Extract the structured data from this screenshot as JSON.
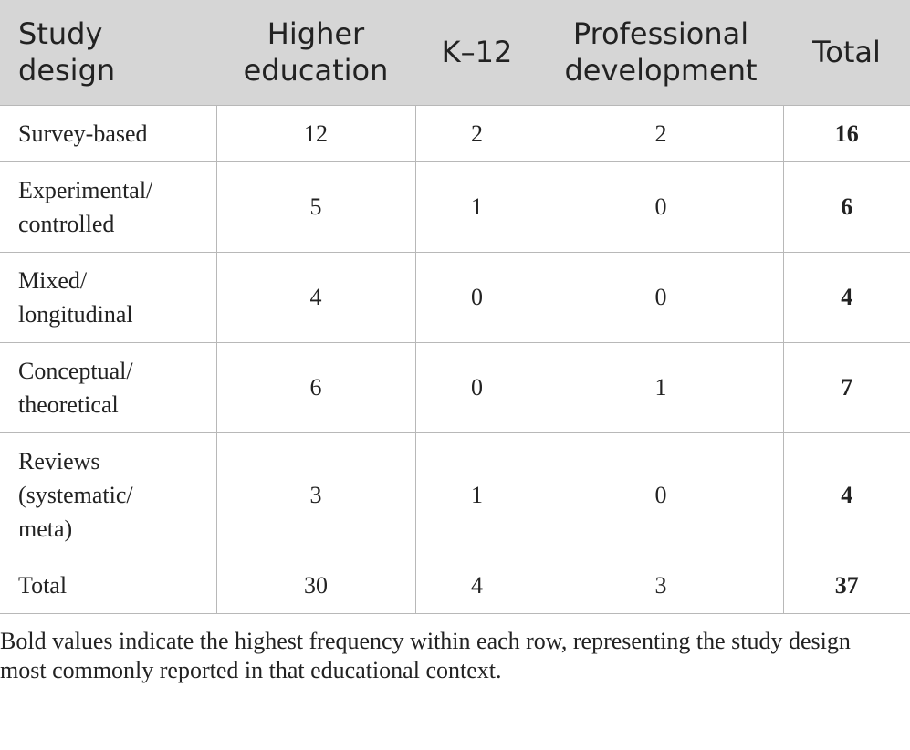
{
  "table": {
    "header": [
      "Study design",
      "Higher education",
      "K–12",
      "Professional development",
      "Total"
    ],
    "rows": [
      [
        "Survey-based",
        12,
        2,
        2,
        16
      ],
      [
        "Experimental/ controlled",
        5,
        1,
        0,
        6
      ],
      [
        "Mixed/ longitudinal",
        4,
        0,
        0,
        4
      ],
      [
        "Conceptual/ theoretical",
        6,
        0,
        1,
        7
      ],
      [
        "Reviews (systematic/ meta)",
        3,
        1,
        0,
        4
      ],
      [
        "Total",
        30,
        4,
        3,
        37
      ]
    ]
  },
  "footnote": "Bold values indicate the highest frequency within each row, representing the study design most commonly reported in that educational context."
}
